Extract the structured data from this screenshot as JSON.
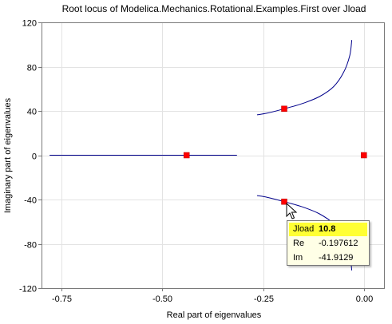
{
  "chart_data": {
    "type": "scatter",
    "title": "Root locus of Modelica.Mechanics.Rotational.Examples.First over Jload",
    "xlabel": "Real part of eigenvalues",
    "ylabel": "Imaginary part of eigenvalues",
    "xlim": [
      -0.8,
      0.05
    ],
    "ylim": [
      -120,
      120
    ],
    "xticks": [
      -0.75,
      -0.5,
      -0.25,
      0.0
    ],
    "xtick_labels": [
      "-0.75",
      "-0.50",
      "-0.25",
      "0.00"
    ],
    "yticks": [
      -120,
      -80,
      -40,
      0,
      40,
      80,
      120
    ],
    "ytick_labels": [
      "-120",
      "-80",
      "-40",
      "0",
      "40",
      "80",
      "120"
    ],
    "grid": true,
    "series": [
      {
        "line_color": "#00008b",
        "points": [
          [
            -0.265,
            36.5
          ],
          [
            -0.24,
            38.0
          ],
          [
            -0.197612,
            41.9129
          ],
          [
            -0.15,
            47.0
          ],
          [
            -0.11,
            53.0
          ],
          [
            -0.075,
            62.0
          ],
          [
            -0.05,
            75.0
          ],
          [
            -0.035,
            90.0
          ],
          [
            -0.03,
            104.0
          ]
        ]
      },
      {
        "line_color": "#00008b",
        "points": [
          [
            -0.265,
            -36.5
          ],
          [
            -0.24,
            -38.0
          ],
          [
            -0.197612,
            -41.9129
          ],
          [
            -0.15,
            -47.0
          ],
          [
            -0.11,
            -53.0
          ],
          [
            -0.075,
            -62.0
          ],
          [
            -0.05,
            -75.0
          ],
          [
            -0.035,
            -90.0
          ],
          [
            -0.03,
            -104.0
          ]
        ]
      },
      {
        "line_color": "#00008b",
        "points": [
          [
            -0.78,
            0
          ],
          [
            -0.315,
            0
          ]
        ]
      }
    ],
    "markers": [
      {
        "x": -0.197612,
        "y": 41.9129
      },
      {
        "x": -0.197612,
        "y": -41.9129
      },
      {
        "x": -0.44,
        "y": 0
      },
      {
        "x": 0.0,
        "y": 0
      }
    ],
    "marker_color": "#ff0000"
  },
  "tooltip": {
    "param_name": "Jload",
    "param_value": "10.8",
    "re_label": "Re",
    "re_value": "-0.197612",
    "im_label": "Im",
    "im_value": "-41.9129"
  }
}
